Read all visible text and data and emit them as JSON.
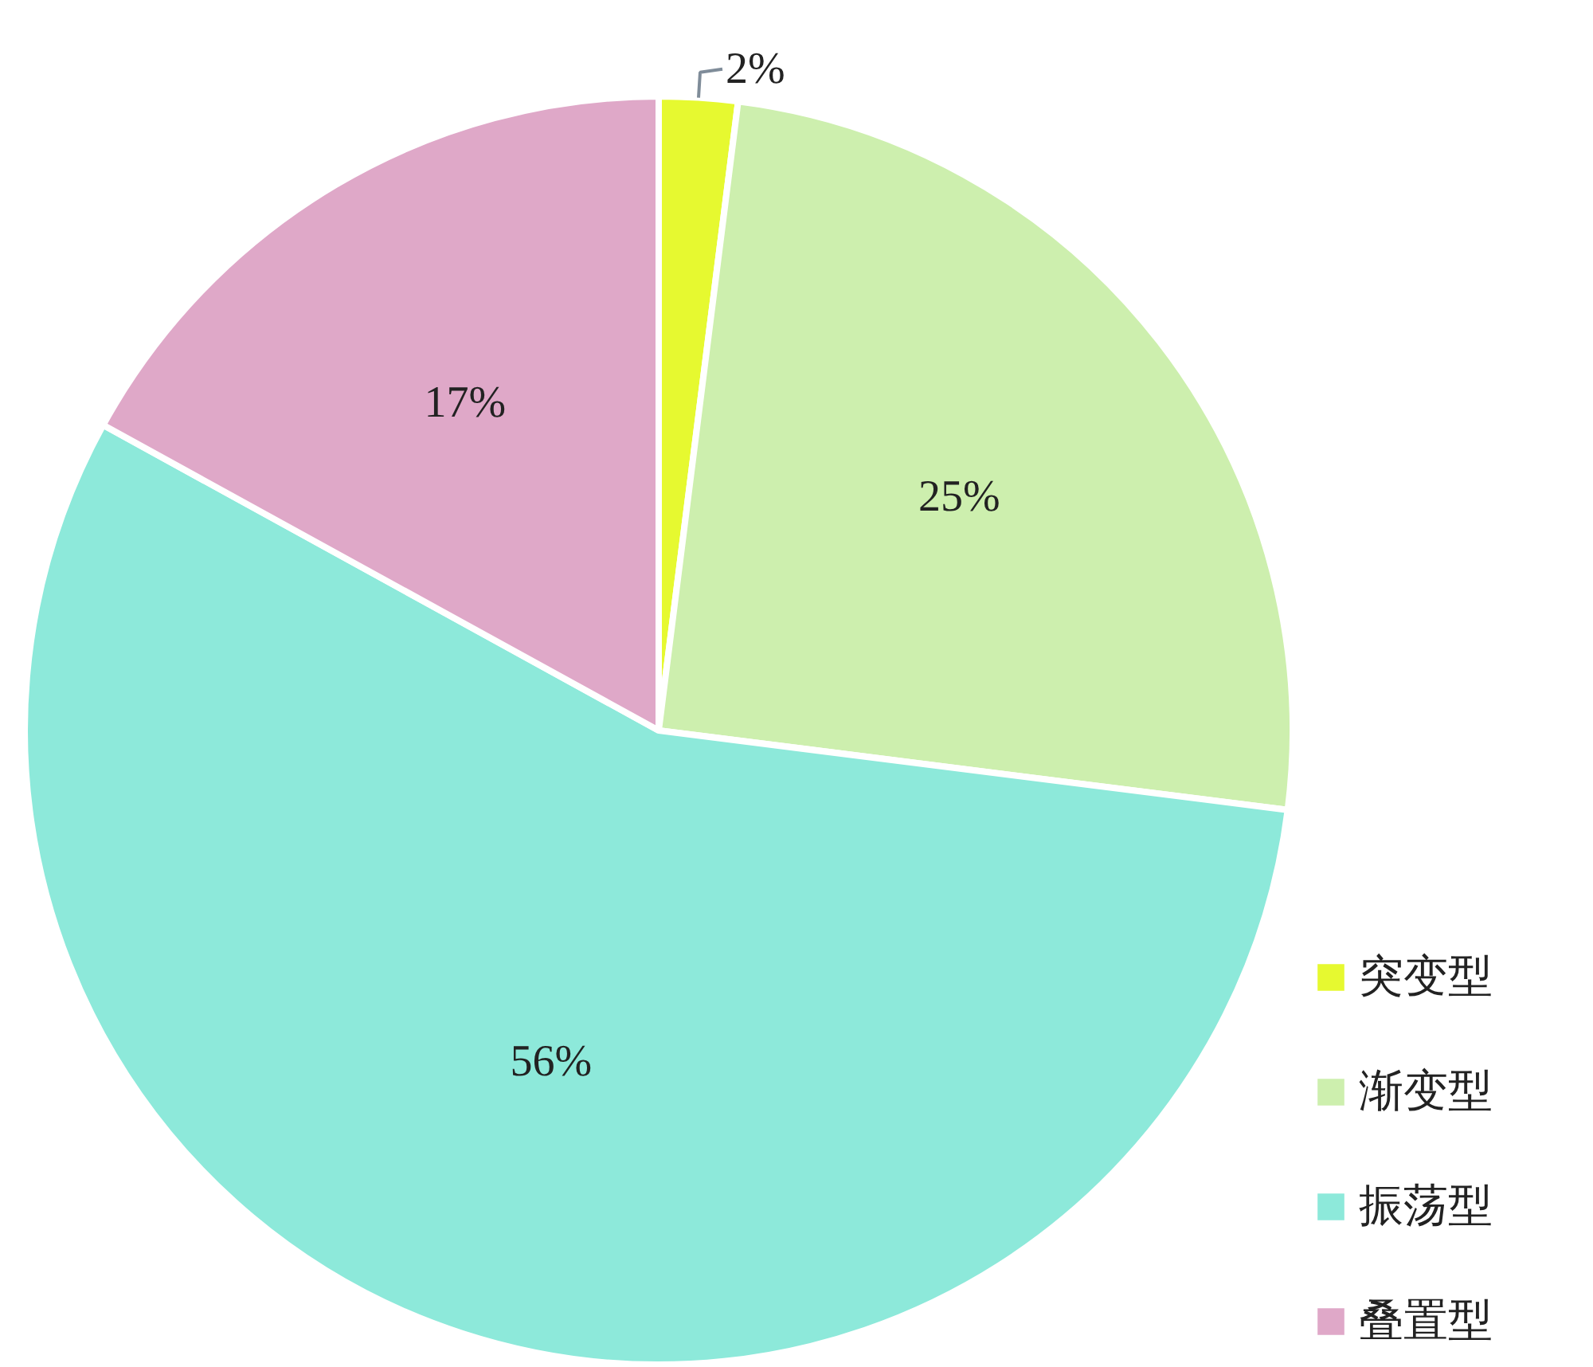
{
  "chart_data": {
    "type": "pie",
    "categories": [
      "突变型",
      "渐变型",
      "振荡型",
      "叠置型"
    ],
    "values": [
      2,
      25,
      56,
      17
    ],
    "colors": [
      "#e6f930",
      "#cdefae",
      "#8de9da",
      "#dfa8c8"
    ],
    "value_labels": [
      "2%",
      "25%",
      "56%",
      "17%"
    ],
    "legend": "bottom right"
  }
}
